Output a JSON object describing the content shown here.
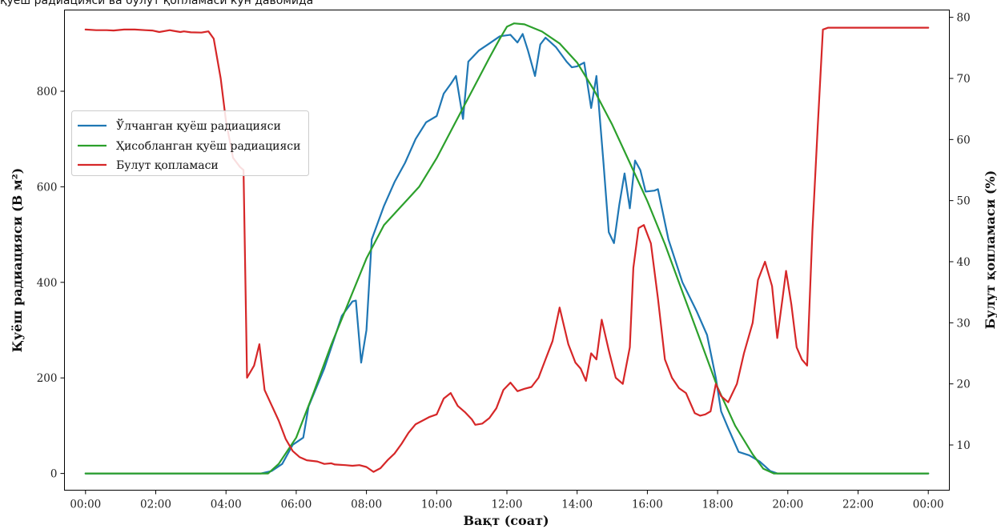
{
  "caption": "қуёш радиацияси ва булут қопламаси кун давомида",
  "chart_data": {
    "type": "line",
    "title": "",
    "xlabel": "Вақт (соат)",
    "ylabel_left": "Қуёш радиацияси (В м²)",
    "ylabel_right": "Булут қопламаси (%)",
    "xlim": [
      -0.6,
      24.6
    ],
    "ylim_left": [
      -35,
      970
    ],
    "ylim_right": [
      2.6,
      81.2
    ],
    "x_ticks": [
      0,
      2,
      4,
      6,
      8,
      10,
      12,
      14,
      16,
      18,
      20,
      22,
      24
    ],
    "x_tick_labels": [
      "00:00",
      "02:00",
      "04:00",
      "06:00",
      "08:00",
      "10:00",
      "12:00",
      "14:00",
      "16:00",
      "18:00",
      "20:00",
      "22:00",
      "00:00"
    ],
    "y_left_ticks": [
      0,
      200,
      400,
      600,
      800
    ],
    "y_left_tick_labels": [
      "0",
      "200",
      "400",
      "600",
      "800"
    ],
    "y_right_ticks": [
      10,
      20,
      30,
      40,
      50,
      60,
      70,
      80
    ],
    "y_right_tick_labels": [
      "10",
      "20",
      "30",
      "40",
      "50",
      "60",
      "70",
      "80"
    ],
    "grid": false,
    "legend_position": "upper-left",
    "series": [
      {
        "name": "Ўлчанган қуёш радиацияси",
        "axis": "left",
        "color": "#1f77b4",
        "points": [
          [
            0,
            0
          ],
          [
            5.0,
            0
          ],
          [
            5.3,
            5
          ],
          [
            5.6,
            20
          ],
          [
            5.9,
            60
          ],
          [
            6.2,
            75
          ],
          [
            6.35,
            140
          ],
          [
            6.8,
            220
          ],
          [
            7.3,
            330
          ],
          [
            7.6,
            360
          ],
          [
            7.7,
            362
          ],
          [
            7.85,
            232
          ],
          [
            8.0,
            300
          ],
          [
            8.15,
            490
          ],
          [
            8.5,
            560
          ],
          [
            8.8,
            610
          ],
          [
            9.1,
            650
          ],
          [
            9.4,
            700
          ],
          [
            9.7,
            735
          ],
          [
            10.0,
            748
          ],
          [
            10.2,
            795
          ],
          [
            10.4,
            815
          ],
          [
            10.55,
            832
          ],
          [
            10.75,
            742
          ],
          [
            10.9,
            862
          ],
          [
            11.2,
            885
          ],
          [
            11.5,
            900
          ],
          [
            11.8,
            915
          ],
          [
            12.1,
            918
          ],
          [
            12.3,
            902
          ],
          [
            12.45,
            920
          ],
          [
            12.6,
            885
          ],
          [
            12.8,
            832
          ],
          [
            12.95,
            898
          ],
          [
            13.1,
            912
          ],
          [
            13.4,
            892
          ],
          [
            13.7,
            862
          ],
          [
            13.85,
            850
          ],
          [
            14.0,
            852
          ],
          [
            14.2,
            860
          ],
          [
            14.4,
            765
          ],
          [
            14.55,
            832
          ],
          [
            14.75,
            650
          ],
          [
            14.9,
            505
          ],
          [
            15.05,
            482
          ],
          [
            15.2,
            562
          ],
          [
            15.35,
            628
          ],
          [
            15.5,
            555
          ],
          [
            15.65,
            655
          ],
          [
            15.8,
            635
          ],
          [
            15.95,
            590
          ],
          [
            16.2,
            592
          ],
          [
            16.3,
            595
          ],
          [
            16.6,
            490
          ],
          [
            17.0,
            400
          ],
          [
            17.4,
            340
          ],
          [
            17.7,
            290
          ],
          [
            17.95,
            200
          ],
          [
            18.1,
            130
          ],
          [
            18.3,
            95
          ],
          [
            18.6,
            45
          ],
          [
            18.9,
            38
          ],
          [
            19.2,
            25
          ],
          [
            19.5,
            5
          ],
          [
            19.7,
            0
          ],
          [
            24.0,
            0
          ]
        ]
      },
      {
        "name": "Ҳисобланган қуёш радиацияси",
        "axis": "left",
        "color": "#2ca02c",
        "points": [
          [
            0,
            0
          ],
          [
            5.2,
            0
          ],
          [
            5.5,
            20
          ],
          [
            6.0,
            75
          ],
          [
            6.5,
            170
          ],
          [
            7.0,
            270
          ],
          [
            7.5,
            360
          ],
          [
            8.0,
            450
          ],
          [
            8.5,
            520
          ],
          [
            9.0,
            560
          ],
          [
            9.5,
            600
          ],
          [
            10.0,
            660
          ],
          [
            10.5,
            730
          ],
          [
            11.0,
            800
          ],
          [
            11.5,
            870
          ],
          [
            11.8,
            910
          ],
          [
            12.0,
            935
          ],
          [
            12.2,
            942
          ],
          [
            12.5,
            940
          ],
          [
            13.0,
            925
          ],
          [
            13.5,
            900
          ],
          [
            14.0,
            860
          ],
          [
            14.5,
            800
          ],
          [
            15.0,
            730
          ],
          [
            15.5,
            650
          ],
          [
            16.0,
            570
          ],
          [
            16.5,
            480
          ],
          [
            17.0,
            380
          ],
          [
            17.5,
            280
          ],
          [
            18.0,
            180
          ],
          [
            18.5,
            100
          ],
          [
            19.0,
            40
          ],
          [
            19.3,
            10
          ],
          [
            19.6,
            0
          ],
          [
            24.0,
            0
          ]
        ]
      },
      {
        "name": "Булут қопламаси",
        "axis": "right",
        "color": "#d62728",
        "points": [
          [
            0,
            78
          ],
          [
            0.3,
            77.9
          ],
          [
            0.6,
            77.9
          ],
          [
            0.8,
            77.85
          ],
          [
            1.1,
            78
          ],
          [
            1.4,
            78
          ],
          [
            1.7,
            77.9
          ],
          [
            1.9,
            77.85
          ],
          [
            2.1,
            77.6
          ],
          [
            2.4,
            77.9
          ],
          [
            2.5,
            77.8
          ],
          [
            2.7,
            77.6
          ],
          [
            2.8,
            77.7
          ],
          [
            3.0,
            77.55
          ],
          [
            3.3,
            77.5
          ],
          [
            3.5,
            77.7
          ],
          [
            3.65,
            76.5
          ],
          [
            3.85,
            70
          ],
          [
            4.0,
            63
          ],
          [
            4.2,
            57
          ],
          [
            4.4,
            55.5
          ],
          [
            4.5,
            55
          ],
          [
            4.6,
            21
          ],
          [
            4.8,
            23
          ],
          [
            4.95,
            26.5
          ],
          [
            5.1,
            19
          ],
          [
            5.3,
            16.5
          ],
          [
            5.5,
            14
          ],
          [
            5.7,
            11
          ],
          [
            5.9,
            9
          ],
          [
            6.1,
            8
          ],
          [
            6.3,
            7.5
          ],
          [
            6.6,
            7.3
          ],
          [
            6.8,
            6.9
          ],
          [
            7.0,
            7
          ],
          [
            7.1,
            6.8
          ],
          [
            7.4,
            6.7
          ],
          [
            7.6,
            6.6
          ],
          [
            7.8,
            6.7
          ],
          [
            8.0,
            6.4
          ],
          [
            8.2,
            5.6
          ],
          [
            8.4,
            6.2
          ],
          [
            8.6,
            7.5
          ],
          [
            8.8,
            8.6
          ],
          [
            9.0,
            10.2
          ],
          [
            9.2,
            12
          ],
          [
            9.4,
            13.4
          ],
          [
            9.6,
            14
          ],
          [
            9.8,
            14.6
          ],
          [
            10.0,
            15
          ],
          [
            10.2,
            17.6
          ],
          [
            10.4,
            18.5
          ],
          [
            10.6,
            16.4
          ],
          [
            10.8,
            15.4
          ],
          [
            11.0,
            14.2
          ],
          [
            11.1,
            13.3
          ],
          [
            11.3,
            13.5
          ],
          [
            11.5,
            14.4
          ],
          [
            11.7,
            16
          ],
          [
            11.9,
            19
          ],
          [
            12.1,
            20.2
          ],
          [
            12.3,
            18.8
          ],
          [
            12.5,
            19.2
          ],
          [
            12.7,
            19.5
          ],
          [
            12.9,
            21
          ],
          [
            13.1,
            24
          ],
          [
            13.3,
            27
          ],
          [
            13.5,
            32.5
          ],
          [
            13.75,
            26.5
          ],
          [
            13.95,
            23.5
          ],
          [
            14.1,
            22.5
          ],
          [
            14.25,
            20.5
          ],
          [
            14.4,
            25
          ],
          [
            14.55,
            24
          ],
          [
            14.7,
            30.5
          ],
          [
            14.9,
            25.5
          ],
          [
            15.1,
            21
          ],
          [
            15.3,
            20
          ],
          [
            15.5,
            26
          ],
          [
            15.6,
            39
          ],
          [
            15.75,
            45.5
          ],
          [
            15.9,
            46
          ],
          [
            16.1,
            43
          ],
          [
            16.3,
            34
          ],
          [
            16.5,
            24
          ],
          [
            16.7,
            21
          ],
          [
            16.9,
            19.3
          ],
          [
            17.1,
            18.5
          ],
          [
            17.35,
            15.2
          ],
          [
            17.5,
            14.8
          ],
          [
            17.65,
            15
          ],
          [
            17.8,
            15.5
          ],
          [
            17.95,
            20
          ],
          [
            18.1,
            18
          ],
          [
            18.3,
            17
          ],
          [
            18.55,
            20
          ],
          [
            18.75,
            25
          ],
          [
            19.0,
            30
          ],
          [
            19.15,
            37
          ],
          [
            19.35,
            40
          ],
          [
            19.55,
            36
          ],
          [
            19.7,
            27.5
          ],
          [
            19.85,
            34
          ],
          [
            19.95,
            38.5
          ],
          [
            20.1,
            33
          ],
          [
            20.25,
            26
          ],
          [
            20.4,
            24
          ],
          [
            20.55,
            23
          ],
          [
            20.7,
            45
          ],
          [
            20.85,
            62
          ],
          [
            21.0,
            78
          ],
          [
            21.15,
            78.3
          ],
          [
            24.0,
            78.3
          ]
        ]
      }
    ]
  }
}
